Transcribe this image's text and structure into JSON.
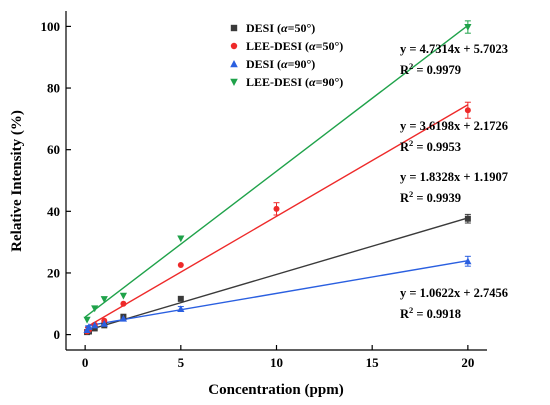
{
  "chart_data": {
    "type": "scatter",
    "xlabel": "Concentration (ppm)",
    "ylabel": "Relative Intensity (%)",
    "xlim": [
      -1,
      21
    ],
    "ylim": [
      -5,
      105
    ],
    "xticks": [
      0,
      5,
      10,
      15,
      20
    ],
    "yticks": [
      0,
      20,
      40,
      60,
      80,
      100
    ],
    "xtick_labels": [
      "0",
      "5",
      "10",
      "15",
      "20"
    ],
    "ytick_labels": [
      "0",
      "20",
      "40",
      "60",
      "80",
      "100"
    ],
    "legend_position": "top-center",
    "grid": false,
    "series": [
      {
        "name_prefix": "DESI (",
        "name_alpha": "α",
        "name_suffix": "=50°)",
        "color": "#3a3a3a",
        "marker": "square",
        "x": [
          0.1,
          0.2,
          0.5,
          1,
          2,
          5,
          20
        ],
        "y": [
          0.8,
          1.0,
          2.0,
          3.0,
          5.8,
          11.6,
          37.6
        ],
        "err": [
          0,
          0,
          0,
          0,
          0,
          0,
          1.4
        ],
        "fit": {
          "slope": 1.8328,
          "intercept": 1.1907
        },
        "equation": "y = 1.8328x + 1.1907",
        "r2_label": "R",
        "r2_sup": "2",
        "r2_value": " = 0.9939"
      },
      {
        "name_prefix": "LEE-DESI (",
        "name_alpha": "α",
        "name_suffix": "=50°)",
        "color": "#ee2a2a",
        "marker": "circle",
        "x": [
          0.1,
          0.2,
          0.5,
          1,
          2,
          5,
          10,
          20
        ],
        "y": [
          1.0,
          1.5,
          3.2,
          4.5,
          10.0,
          22.6,
          40.8,
          72.8
        ],
        "err": [
          0,
          0,
          0,
          0,
          0,
          0,
          2.0,
          2.6
        ],
        "fit": {
          "slope": 3.6198,
          "intercept": 2.1726
        },
        "equation": "y = 3.6198x + 2.1726",
        "r2_label": "R",
        "r2_sup": "2",
        "r2_value": " = 0.9953"
      },
      {
        "name_prefix": "DESI (",
        "name_alpha": "α",
        "name_suffix": "=90°)",
        "color": "#2a5fe0",
        "marker": "triangle-up",
        "x": [
          0.1,
          0.2,
          0.5,
          1,
          2,
          5,
          20
        ],
        "y": [
          1.5,
          2.5,
          3.0,
          3.5,
          5.2,
          8.3,
          23.8
        ],
        "err": [
          0,
          0,
          0,
          0,
          0,
          0.8,
          1.6
        ],
        "fit": {
          "slope": 1.0622,
          "intercept": 2.7456
        },
        "equation": "y = 1.0622x + 2.7456",
        "r2_label": "R",
        "r2_sup": "2",
        "r2_value": " = 0.9918"
      },
      {
        "name_prefix": "LEE-DESI (",
        "name_alpha": "α",
        "name_suffix": "=90°)",
        "color": "#1fa24a",
        "marker": "triangle-down",
        "x": [
          0.1,
          0.5,
          1,
          2,
          5,
          20
        ],
        "y": [
          4.8,
          8.5,
          11.5,
          12.6,
          31.2,
          99.8
        ],
        "err": [
          0,
          0,
          0,
          0,
          0,
          2.0
        ],
        "fit": {
          "slope": 4.7314,
          "intercept": 5.7023
        },
        "equation": "y = 4.7314x + 5.7023",
        "r2_label": "R",
        "r2_sup": "2",
        "r2_value": " = 0.9979"
      }
    ]
  }
}
